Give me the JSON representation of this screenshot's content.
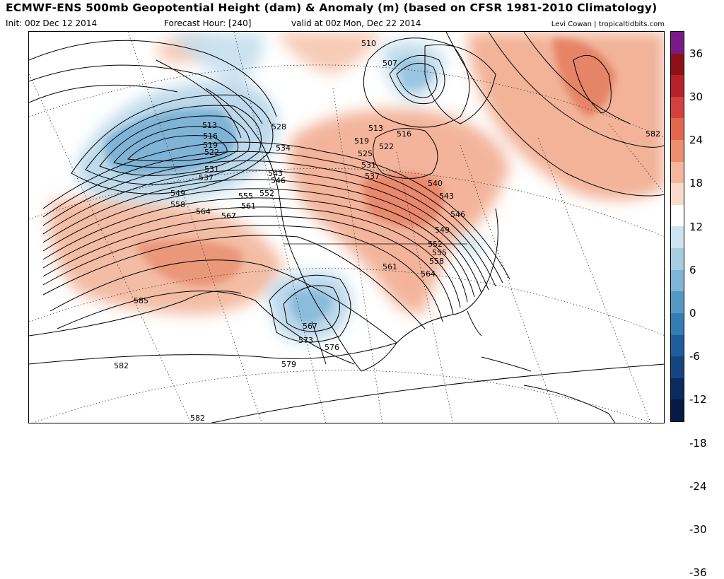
{
  "header": {
    "title": "ECMWF-ENS 500mb Geopotential Height (dam) & Anomaly (m) (based on CFSR 1981-2010 Climatology)",
    "init": "Init: 00z Dec 12 2014",
    "forecast_hour": "Forecast Hour: [240]",
    "valid": "valid at 00z Mon, Dec 22 2014",
    "credit": "Levi Cowan | tropicaltidbits.com"
  },
  "colorbar": {
    "labels": [
      "36",
      "30",
      "24",
      "18",
      "12",
      "6",
      "0",
      "-6",
      "-12",
      "-18",
      "-24",
      "-30",
      "-36"
    ],
    "colors": [
      "#7a1a86",
      "#8c1116",
      "#b5202a",
      "#d2413e",
      "#e1674f",
      "#ec8e6f",
      "#f4b79c",
      "#fadbcb",
      "#ffffff",
      "#cde3ef",
      "#a7cde3",
      "#7eb5d6",
      "#5598c6",
      "#347cb3",
      "#1f5e9c",
      "#15447f",
      "#0b2a5e",
      "#061a44"
    ]
  },
  "contour_labels": [
    "510",
    "507",
    "513",
    "516",
    "519",
    "522",
    "525",
    "531",
    "537",
    "540",
    "543",
    "546",
    "549",
    "552",
    "555",
    "558",
    "561",
    "564",
    "528",
    "534",
    "543",
    "546",
    "552",
    "555",
    "561",
    "513",
    "516",
    "519",
    "522",
    "531",
    "537",
    "549",
    "558",
    "564",
    "567",
    "567",
    "573",
    "576",
    "579",
    "582",
    "582",
    "585",
    "582"
  ],
  "colors": {
    "positive": "#e8866a",
    "negative": "#6fa9d2",
    "contour": "#000000"
  }
}
